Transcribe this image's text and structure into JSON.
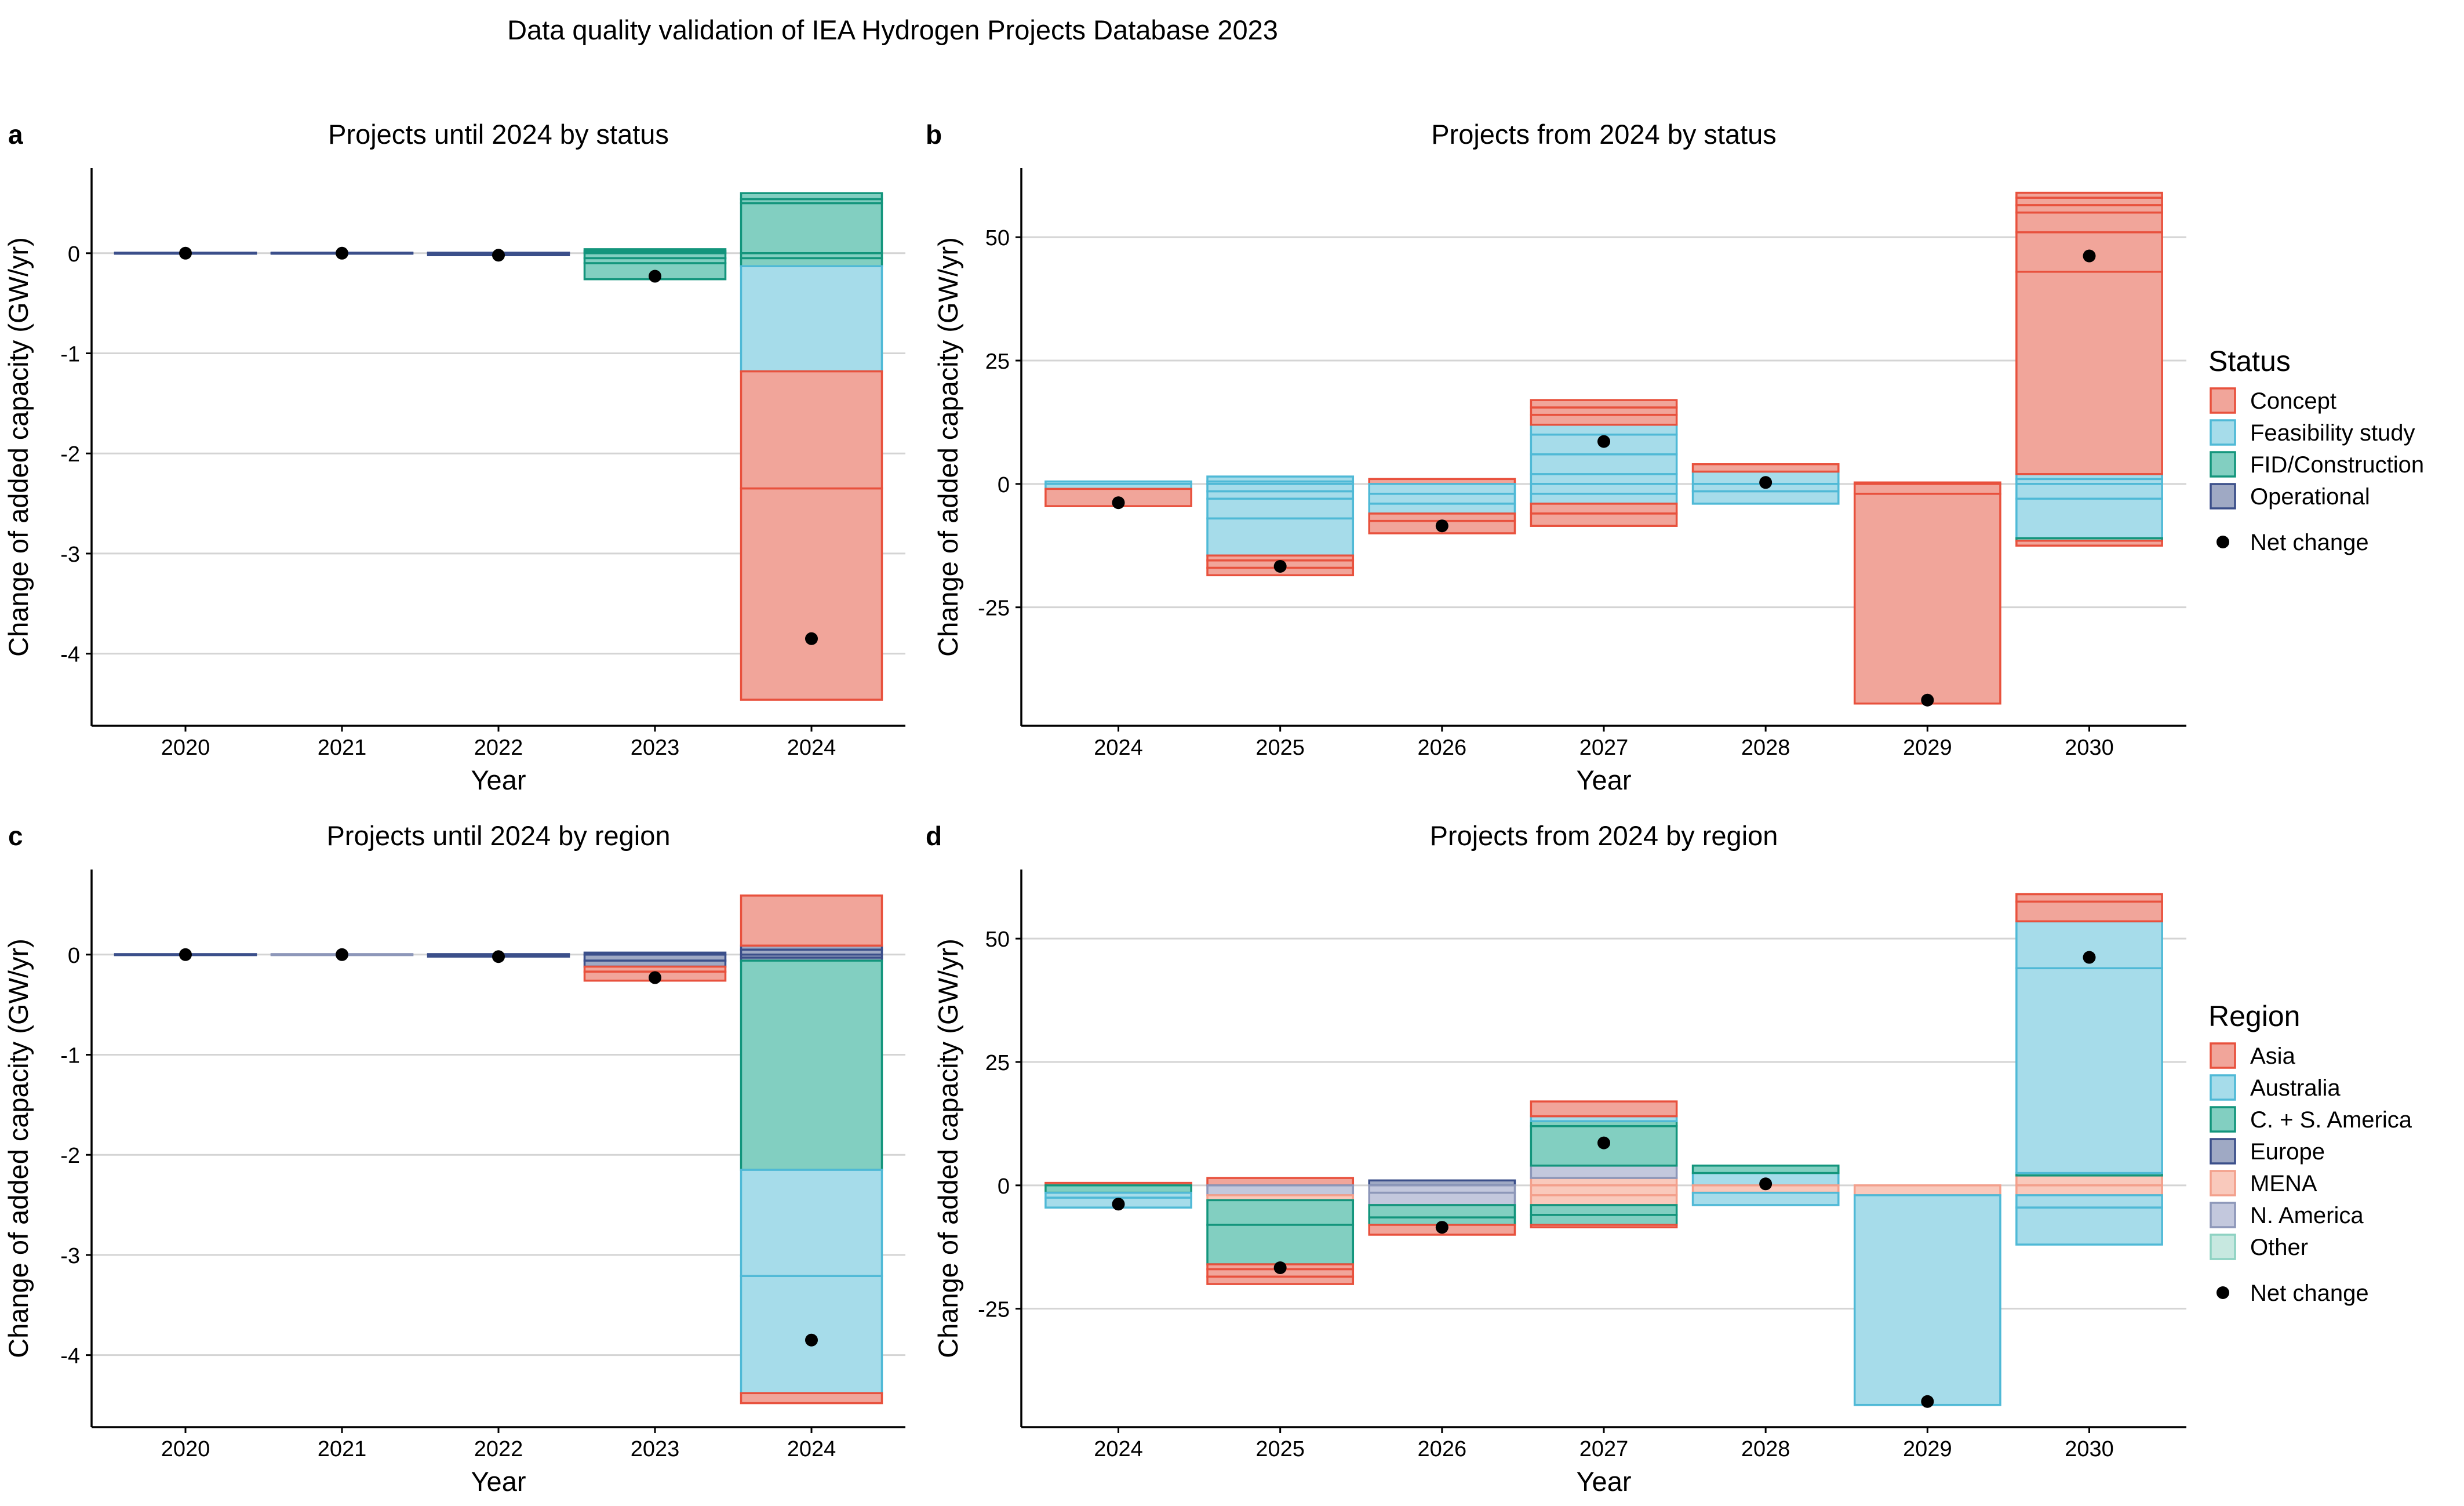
{
  "figure": {
    "title": "Data quality validation of IEA Hydrogen Projects Database 2023"
  },
  "colors": {
    "Concept": {
      "fill": "#f1a59a",
      "stroke": "#e8513d"
    },
    "Feasibility study": {
      "fill": "#a6dcea",
      "stroke": "#4fb9d6"
    },
    "FID/Construction": {
      "fill": "#82cfc1",
      "stroke": "#13957c"
    },
    "Operational": {
      "fill": "#9fa9c4",
      "stroke": "#3b4f8a"
    },
    "Asia": {
      "fill": "#f1a59a",
      "stroke": "#e8513d"
    },
    "Australia": {
      "fill": "#a6dcea",
      "stroke": "#4fb9d6"
    },
    "C. + S. America": {
      "fill": "#82cfc1",
      "stroke": "#13957c"
    },
    "Europe": {
      "fill": "#9fa9c4",
      "stroke": "#3b4f8a"
    },
    "MENA": {
      "fill": "#f9c9bc",
      "stroke": "#f3a08c"
    },
    "N. America": {
      "fill": "#c3c8dd",
      "stroke": "#8d97b9"
    },
    "Other": {
      "fill": "#c7e8e0",
      "stroke": "#8ed2c2"
    }
  },
  "legends": [
    {
      "title": "Status",
      "items": [
        "Concept",
        "Feasibility study",
        "FID/Construction",
        "Operational"
      ],
      "net_label": "Net change"
    },
    {
      "title": "Region",
      "items": [
        "Asia",
        "Australia",
        "C. + S. America",
        "Europe",
        "MENA",
        "N. America",
        "Other"
      ],
      "net_label": "Net change"
    }
  ],
  "chart_data": [
    {
      "panel": "a",
      "type": "bar",
      "title": "Projects until 2024 by status",
      "xlabel": "Year",
      "ylabel": "Change of added capacity (GW/yr)",
      "categories": [
        "2020",
        "2021",
        "2022",
        "2023",
        "2024"
      ],
      "ylim": [
        -4.72,
        0.85
      ],
      "yticks": [
        0,
        -1,
        -2,
        -3,
        -4
      ],
      "grid": "horizontal",
      "legend": "Status",
      "net_change": [
        0.0,
        0.0,
        -0.02,
        -0.23,
        -3.85
      ],
      "positive_segments": [
        [
          {
            "cat": "Operational",
            "v": 0.005
          }
        ],
        [
          {
            "cat": "Operational",
            "v": 0.005
          }
        ],
        [
          {
            "cat": "Operational",
            "v": 0.005
          }
        ],
        [
          {
            "cat": "FID/Construction",
            "v": 0.02
          },
          {
            "cat": "FID/Construction",
            "v": 0.02
          }
        ],
        [
          {
            "cat": "FID/Construction",
            "v": 0.5
          },
          {
            "cat": "FID/Construction",
            "v": 0.04
          },
          {
            "cat": "FID/Construction",
            "v": 0.06
          }
        ]
      ],
      "negative_segments": [
        [
          {
            "cat": "Operational",
            "v": -0.005
          }
        ],
        [
          {
            "cat": "Operational",
            "v": -0.005
          }
        ],
        [
          {
            "cat": "Operational",
            "v": -0.02
          }
        ],
        [
          {
            "cat": "FID/Construction",
            "v": -0.05
          },
          {
            "cat": "FID/Construction",
            "v": -0.05
          },
          {
            "cat": "FID/Construction",
            "v": -0.16
          }
        ],
        [
          {
            "cat": "FID/Construction",
            "v": -0.05
          },
          {
            "cat": "FID/Construction",
            "v": -0.08
          },
          {
            "cat": "Feasibility study",
            "v": -1.05
          },
          {
            "cat": "Concept",
            "v": -1.17
          },
          {
            "cat": "Concept",
            "v": -2.11
          }
        ]
      ]
    },
    {
      "panel": "b",
      "type": "bar",
      "title": "Projects from 2024 by status",
      "xlabel": "Year",
      "ylabel": "Change of added capacity (GW/yr)",
      "categories": [
        "2024",
        "2025",
        "2026",
        "2027",
        "2028",
        "2029",
        "2030"
      ],
      "ylim": [
        -49,
        64
      ],
      "yticks": [
        50,
        25,
        0,
        -25
      ],
      "grid": "horizontal",
      "legend": "Status",
      "net_change": [
        -3.8,
        -16.7,
        -8.5,
        8.6,
        0.3,
        -43.8,
        46.2
      ],
      "positive_segments": [
        [
          {
            "cat": "Feasibility study",
            "v": 0.5
          }
        ],
        [
          {
            "cat": "Feasibility study",
            "v": 0.5
          },
          {
            "cat": "Feasibility study",
            "v": 1.0
          }
        ],
        [
          {
            "cat": "Concept",
            "v": 1.0
          }
        ],
        [
          {
            "cat": "Feasibility study",
            "v": 2
          },
          {
            "cat": "Feasibility study",
            "v": 4
          },
          {
            "cat": "Feasibility study",
            "v": 4
          },
          {
            "cat": "Feasibility study",
            "v": 2
          },
          {
            "cat": "Concept",
            "v": 2
          },
          {
            "cat": "Concept",
            "v": 1.5
          },
          {
            "cat": "Concept",
            "v": 1.5
          }
        ],
        [
          {
            "cat": "Feasibility study",
            "v": 2.5
          },
          {
            "cat": "Concept",
            "v": 1.5
          }
        ],
        [
          {
            "cat": "Concept",
            "v": 0.3
          }
        ],
        [
          {
            "cat": "Feasibility study",
            "v": 1
          },
          {
            "cat": "Feasibility study",
            "v": 1
          },
          {
            "cat": "Concept",
            "v": 41
          },
          {
            "cat": "Concept",
            "v": 8
          },
          {
            "cat": "Concept",
            "v": 4
          },
          {
            "cat": "Concept",
            "v": 1.5
          },
          {
            "cat": "Concept",
            "v": 1.5
          },
          {
            "cat": "Concept",
            "v": 1
          }
        ]
      ],
      "negative_segments": [
        [
          {
            "cat": "Feasibility study",
            "v": -1.0
          },
          {
            "cat": "Concept",
            "v": -3.5
          }
        ],
        [
          {
            "cat": "Feasibility study",
            "v": -1.5
          },
          {
            "cat": "Feasibility study",
            "v": -1.5
          },
          {
            "cat": "Feasibility study",
            "v": -4
          },
          {
            "cat": "Feasibility study",
            "v": -7.5
          },
          {
            "cat": "Concept",
            "v": -1
          },
          {
            "cat": "Concept",
            "v": -1.5
          },
          {
            "cat": "Concept",
            "v": -1.5
          }
        ],
        [
          {
            "cat": "Feasibility study",
            "v": -2
          },
          {
            "cat": "Feasibility study",
            "v": -2
          },
          {
            "cat": "Feasibility study",
            "v": -2
          },
          {
            "cat": "Concept",
            "v": -1.5
          },
          {
            "cat": "Concept",
            "v": -2.5
          }
        ],
        [
          {
            "cat": "Feasibility study",
            "v": -2
          },
          {
            "cat": "Feasibility study",
            "v": -2
          },
          {
            "cat": "Concept",
            "v": -2
          },
          {
            "cat": "Concept",
            "v": -2.5
          }
        ],
        [
          {
            "cat": "Feasibility study",
            "v": -1.5
          },
          {
            "cat": "Feasibility study",
            "v": -2.5
          }
        ],
        [
          {
            "cat": "Concept",
            "v": -2
          },
          {
            "cat": "Concept",
            "v": -42.5
          }
        ],
        [
          {
            "cat": "Feasibility study",
            "v": -3
          },
          {
            "cat": "Feasibility study",
            "v": -8
          },
          {
            "cat": "FID/Construction",
            "v": -0.5
          },
          {
            "cat": "Concept",
            "v": -1
          }
        ]
      ]
    },
    {
      "panel": "c",
      "type": "bar",
      "title": "Projects until 2024 by region",
      "xlabel": "Year",
      "ylabel": "Change of added capacity (GW/yr)",
      "categories": [
        "2020",
        "2021",
        "2022",
        "2023",
        "2024"
      ],
      "ylim": [
        -4.72,
        0.85
      ],
      "yticks": [
        0,
        -1,
        -2,
        -3,
        -4
      ],
      "grid": "horizontal",
      "legend": "Region",
      "net_change": [
        0.0,
        0.0,
        -0.02,
        -0.23,
        -3.85
      ],
      "positive_segments": [
        [
          {
            "cat": "Europe",
            "v": 0.005
          }
        ],
        [
          {
            "cat": "N. America",
            "v": 0.005
          }
        ],
        [
          {
            "cat": "Europe",
            "v": 0.005
          }
        ],
        [
          {
            "cat": "Europe",
            "v": 0.02
          }
        ],
        [
          {
            "cat": "Europe",
            "v": 0.05
          },
          {
            "cat": "Europe",
            "v": 0.04
          },
          {
            "cat": "Asia",
            "v": 0.5
          }
        ]
      ],
      "negative_segments": [
        [
          {
            "cat": "Europe",
            "v": -0.005
          }
        ],
        [
          {
            "cat": "N. America",
            "v": -0.005
          }
        ],
        [
          {
            "cat": "Europe",
            "v": -0.02
          }
        ],
        [
          {
            "cat": "Europe",
            "v": -0.06
          },
          {
            "cat": "Europe",
            "v": -0.06
          },
          {
            "cat": "Asia",
            "v": -0.05
          },
          {
            "cat": "Asia",
            "v": -0.09
          }
        ],
        [
          {
            "cat": "Europe",
            "v": -0.03
          },
          {
            "cat": "Europe",
            "v": -0.03
          },
          {
            "cat": "C. + S. America",
            "v": -2.09
          },
          {
            "cat": "Australia",
            "v": -1.06
          },
          {
            "cat": "Australia",
            "v": -1.17
          },
          {
            "cat": "Asia",
            "v": -0.1
          }
        ]
      ]
    },
    {
      "panel": "d",
      "type": "bar",
      "title": "Projects from 2024 by region",
      "xlabel": "Year",
      "ylabel": "Change of added capacity (GW/yr)",
      "categories": [
        "2024",
        "2025",
        "2026",
        "2027",
        "2028",
        "2029",
        "2030"
      ],
      "ylim": [
        -49,
        64
      ],
      "yticks": [
        50,
        25,
        0,
        -25
      ],
      "grid": "horizontal",
      "legend": "Region",
      "net_change": [
        -3.8,
        -16.7,
        -8.5,
        8.6,
        0.3,
        -43.8,
        46.2
      ],
      "positive_segments": [
        [
          {
            "cat": "Asia",
            "v": 0.5
          }
        ],
        [
          {
            "cat": "Asia",
            "v": 1.5
          }
        ],
        [
          {
            "cat": "Europe",
            "v": 1.0
          }
        ],
        [
          {
            "cat": "MENA",
            "v": 1.5
          },
          {
            "cat": "N. America",
            "v": 2.5
          },
          {
            "cat": "C. + S. America",
            "v": 8
          },
          {
            "cat": "C. + S. America",
            "v": 1
          },
          {
            "cat": "Australia",
            "v": 1
          },
          {
            "cat": "Asia",
            "v": 3
          }
        ],
        [
          {
            "cat": "Australia",
            "v": 2.5
          },
          {
            "cat": "C. + S. America",
            "v": 1.5
          }
        ],
        [],
        [
          {
            "cat": "MENA",
            "v": 2
          },
          {
            "cat": "C. + S. America",
            "v": 0.5
          },
          {
            "cat": "Australia",
            "v": 41.5
          },
          {
            "cat": "Australia",
            "v": 9.5
          },
          {
            "cat": "Asia",
            "v": 4
          },
          {
            "cat": "Asia",
            "v": 1.5
          }
        ]
      ],
      "negative_segments": [
        [
          {
            "cat": "C. + S. America",
            "v": -1.5
          },
          {
            "cat": "Australia",
            "v": -1
          },
          {
            "cat": "Australia",
            "v": -2
          }
        ],
        [
          {
            "cat": "N. America",
            "v": -2
          },
          {
            "cat": "MENA",
            "v": -1
          },
          {
            "cat": "C. + S. America",
            "v": -5
          },
          {
            "cat": "C. + S. America",
            "v": -8
          },
          {
            "cat": "Asia",
            "v": -1
          },
          {
            "cat": "Asia",
            "v": -1.5
          },
          {
            "cat": "Asia",
            "v": -1.5
          }
        ],
        [
          {
            "cat": "N. America",
            "v": -1.5
          },
          {
            "cat": "N. America",
            "v": -2.5
          },
          {
            "cat": "C. + S. America",
            "v": -2.5
          },
          {
            "cat": "C. + S. America",
            "v": -1.5
          },
          {
            "cat": "Asia",
            "v": -2
          }
        ],
        [
          {
            "cat": "MENA",
            "v": -2
          },
          {
            "cat": "MENA",
            "v": -2
          },
          {
            "cat": "C. + S. America",
            "v": -2
          },
          {
            "cat": "C. + S. America",
            "v": -2
          },
          {
            "cat": "Asia",
            "v": -0.5
          }
        ],
        [
          {
            "cat": "MENA",
            "v": -1.5
          },
          {
            "cat": "Australia",
            "v": -2.5
          }
        ],
        [
          {
            "cat": "MENA",
            "v": -2
          },
          {
            "cat": "Australia",
            "v": -42.5
          }
        ],
        [
          {
            "cat": "MENA",
            "v": -2
          },
          {
            "cat": "Australia",
            "v": -2.5
          },
          {
            "cat": "Australia",
            "v": -7.5
          }
        ]
      ]
    }
  ]
}
